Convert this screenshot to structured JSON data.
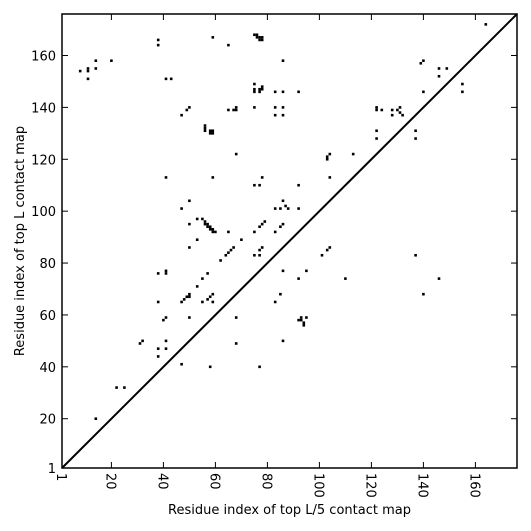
{
  "chart_data": {
    "type": "scatter",
    "marker": "square",
    "marker_color": "#000000",
    "diagonal_line": true,
    "xlabel": "Residue index of top L/5 contact map",
    "ylabel": "Residue index of top L contact map",
    "xlim": [
      1,
      176
    ],
    "ylim": [
      1,
      176
    ],
    "x_ticks": [
      1,
      20,
      40,
      60,
      80,
      100,
      120,
      140,
      160
    ],
    "y_ticks": [
      1,
      20,
      40,
      60,
      80,
      100,
      120,
      140,
      160
    ],
    "x_tick_labels": [
      "1",
      "20",
      "40",
      "60",
      "80",
      "100",
      "120",
      "140",
      "160"
    ],
    "y_tick_labels": [
      "1",
      "20",
      "40",
      "60",
      "80",
      "100",
      "120",
      "140",
      "160"
    ],
    "grid": false,
    "upper_points": [
      [
        8,
        154
      ],
      [
        11,
        151
      ],
      [
        11,
        154
      ],
      [
        11,
        155
      ],
      [
        14,
        155
      ],
      [
        14,
        158
      ],
      [
        20,
        158
      ],
      [
        38,
        164
      ],
      [
        38,
        166
      ],
      [
        41,
        151
      ],
      [
        43,
        151
      ],
      [
        41,
        113
      ],
      [
        47,
        137
      ],
      [
        49,
        139
      ],
      [
        50,
        140
      ],
      [
        56,
        133
      ],
      [
        56,
        132
      ],
      [
        56,
        131
      ],
      [
        58,
        131
      ],
      [
        58,
        130
      ],
      [
        59,
        131
      ],
      [
        59,
        130
      ],
      [
        59,
        113
      ],
      [
        59,
        167
      ],
      [
        65,
        164
      ],
      [
        65,
        139
      ],
      [
        67,
        139
      ],
      [
        68,
        139
      ],
      [
        68,
        140
      ],
      [
        68,
        122
      ],
      [
        75,
        168
      ],
      [
        76,
        168
      ],
      [
        76,
        167
      ],
      [
        77,
        167
      ],
      [
        77,
        166
      ],
      [
        78,
        166
      ],
      [
        78,
        167
      ],
      [
        75,
        149
      ],
      [
        75,
        147
      ],
      [
        75,
        146
      ],
      [
        77,
        147
      ],
      [
        77,
        146
      ],
      [
        78,
        148
      ],
      [
        78,
        147
      ],
      [
        75,
        140
      ],
      [
        75,
        110
      ],
      [
        77,
        110
      ],
      [
        78,
        113
      ],
      [
        83,
        146
      ],
      [
        83,
        140
      ],
      [
        83,
        137
      ],
      [
        86,
        146
      ],
      [
        86,
        140
      ],
      [
        86,
        137
      ],
      [
        86,
        158
      ],
      [
        92,
        146
      ],
      [
        86,
        104
      ],
      [
        87,
        102
      ],
      [
        85,
        101
      ],
      [
        88,
        101
      ],
      [
        83,
        101
      ],
      [
        92,
        110
      ],
      [
        92,
        101
      ],
      [
        103,
        120
      ],
      [
        103,
        121
      ],
      [
        104,
        122
      ],
      [
        104,
        113
      ],
      [
        113,
        122
      ],
      [
        122,
        140
      ],
      [
        122,
        139
      ],
      [
        124,
        139
      ],
      [
        122,
        131
      ],
      [
        122,
        128
      ],
      [
        128,
        139
      ],
      [
        128,
        137
      ],
      [
        130,
        139
      ],
      [
        131,
        140
      ],
      [
        131,
        138
      ],
      [
        132,
        137
      ],
      [
        137,
        131
      ],
      [
        137,
        128
      ],
      [
        139,
        157
      ],
      [
        140,
        158
      ],
      [
        140,
        146
      ],
      [
        146,
        155
      ],
      [
        146,
        152
      ],
      [
        149,
        155
      ],
      [
        155,
        149
      ],
      [
        155,
        146
      ],
      [
        164,
        172
      ]
    ],
    "lower_points": [
      [
        14,
        20
      ],
      [
        22,
        32
      ],
      [
        25,
        32
      ],
      [
        31,
        49
      ],
      [
        32,
        50
      ],
      [
        38,
        47
      ],
      [
        38,
        44
      ],
      [
        38,
        65
      ],
      [
        38,
        76
      ],
      [
        41,
        76
      ],
      [
        41,
        77
      ],
      [
        40,
        58
      ],
      [
        41,
        59
      ],
      [
        41,
        50
      ],
      [
        41,
        47
      ],
      [
        47,
        41
      ],
      [
        47,
        101
      ],
      [
        47,
        65
      ],
      [
        48,
        66
      ],
      [
        49,
        67
      ],
      [
        50,
        67
      ],
      [
        50,
        68
      ],
      [
        50,
        59
      ],
      [
        50,
        86
      ],
      [
        50,
        95
      ],
      [
        50,
        104
      ],
      [
        53,
        71
      ],
      [
        53,
        89
      ],
      [
        53,
        97
      ],
      [
        55,
        97
      ],
      [
        56,
        96
      ],
      [
        56,
        95
      ],
      [
        57,
        95
      ],
      [
        57,
        94
      ],
      [
        58,
        94
      ],
      [
        58,
        93
      ],
      [
        59,
        93
      ],
      [
        59,
        92
      ],
      [
        60,
        92
      ],
      [
        55,
        74
      ],
      [
        55,
        65
      ],
      [
        57,
        76
      ],
      [
        57,
        66
      ],
      [
        58,
        67
      ],
      [
        58,
        40
      ],
      [
        59,
        68
      ],
      [
        59,
        65
      ],
      [
        62,
        81
      ],
      [
        64,
        83
      ],
      [
        65,
        84
      ],
      [
        66,
        85
      ],
      [
        67,
        86
      ],
      [
        65,
        92
      ],
      [
        68,
        49
      ],
      [
        68,
        59
      ],
      [
        70,
        89
      ],
      [
        75,
        83
      ],
      [
        75,
        92
      ],
      [
        77,
        94
      ],
      [
        78,
        95
      ],
      [
        79,
        96
      ],
      [
        77,
        40
      ],
      [
        77,
        83
      ],
      [
        77,
        85
      ],
      [
        78,
        86
      ],
      [
        83,
        65
      ],
      [
        83,
        92
      ],
      [
        85,
        68
      ],
      [
        85,
        94
      ],
      [
        86,
        77
      ],
      [
        86,
        95
      ],
      [
        86,
        50
      ],
      [
        92,
        74
      ],
      [
        92,
        58
      ],
      [
        93,
        59
      ],
      [
        93,
        58
      ],
      [
        94,
        57
      ],
      [
        94,
        56
      ],
      [
        95,
        59
      ],
      [
        95,
        77
      ],
      [
        101,
        83
      ],
      [
        103,
        85
      ],
      [
        104,
        86
      ],
      [
        110,
        74
      ],
      [
        137,
        83
      ],
      [
        140,
        68
      ],
      [
        146,
        74
      ]
    ]
  }
}
